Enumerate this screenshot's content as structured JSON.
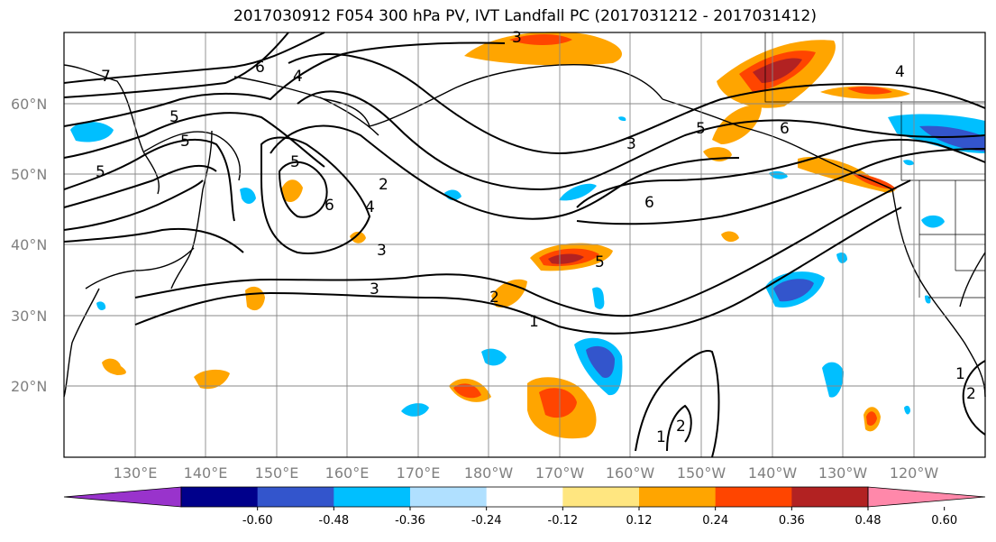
{
  "title": "2017030912 F054 300 hPa PV, IVT Landfall PC (2017031212 - 2017031412)",
  "lat_labels": [
    "60°N",
    "50°N",
    "40°N",
    "30°N",
    "20°N"
  ],
  "lon_labels": [
    "130°E",
    "140°E",
    "150°E",
    "160°E",
    "170°E",
    "180°W",
    "170°W",
    "160°W",
    "150°W",
    "140°W",
    "130°W",
    "120°W"
  ],
  "contour_labels": [
    "7",
    "6",
    "5",
    "4",
    "3",
    "2",
    "1"
  ],
  "colorbar": {
    "colors": [
      "#9933cc",
      "#00008b",
      "#3355cc",
      "#00bfff",
      "#b0e0ff",
      "#ffffff",
      "#ffe680",
      "#ffa500",
      "#ff4500",
      "#b22222",
      "#ff88aa"
    ],
    "tick_labels": [
      "-0.60",
      "-0.48",
      "-0.36",
      "-0.24",
      "-0.12",
      "0.12",
      "0.24",
      "0.36",
      "0.48",
      "0.60"
    ]
  }
}
